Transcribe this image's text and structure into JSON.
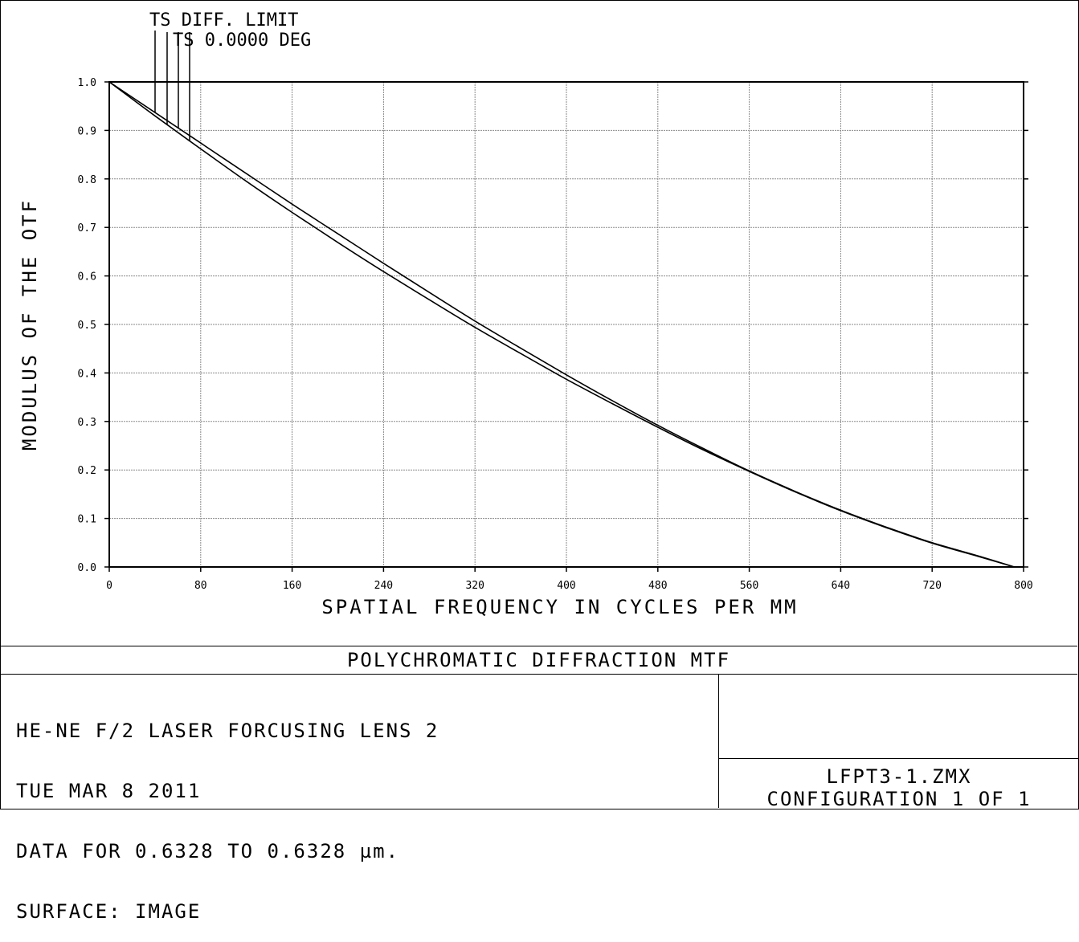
{
  "chart_data": {
    "type": "line",
    "title": "POLYCHROMATIC DIFFRACTION MTF",
    "xlabel": "SPATIAL FREQUENCY IN CYCLES PER MM",
    "ylabel": "MODULUS OF THE OTF",
    "xlim": [
      0,
      800
    ],
    "ylim": [
      0.0,
      1.0
    ],
    "x_ticks": [
      "0",
      "80",
      "160",
      "240",
      "320",
      "400",
      "480",
      "560",
      "640",
      "720",
      "800"
    ],
    "y_ticks": [
      "0.0",
      "0.1",
      "0.2",
      "0.3",
      "0.4",
      "0.5",
      "0.6",
      "0.7",
      "0.8",
      "0.9",
      "1.0"
    ],
    "grid": true,
    "legend_position": "top-left",
    "series": [
      {
        "name": "TS DIFF. LIMIT",
        "x": [
          0,
          40,
          80,
          120,
          160,
          200,
          240,
          280,
          320,
          360,
          400,
          440,
          480,
          520,
          560,
          600,
          640,
          680,
          720,
          760,
          792
        ],
        "y": [
          1.0,
          0.937,
          0.874,
          0.811,
          0.748,
          0.687,
          0.626,
          0.566,
          0.507,
          0.451,
          0.396,
          0.343,
          0.292,
          0.244,
          0.198,
          0.156,
          0.117,
          0.082,
          0.05,
          0.023,
          0.0
        ]
      },
      {
        "name": "TS 0.0000 DEG",
        "x": [
          0,
          40,
          80,
          120,
          160,
          200,
          240,
          280,
          320,
          360,
          400,
          440,
          480,
          520,
          560,
          600,
          640,
          680,
          720,
          760,
          792
        ],
        "y": [
          1.0,
          0.93,
          0.862,
          0.795,
          0.731,
          0.669,
          0.609,
          0.551,
          0.494,
          0.44,
          0.387,
          0.337,
          0.288,
          0.241,
          0.197,
          0.155,
          0.116,
          0.081,
          0.049,
          0.022,
          0.0
        ]
      }
    ]
  },
  "info": {
    "line1": "HE-NE F/2 LASER FORCUSING LENS 2",
    "line2": "TUE MAR 8 2011",
    "line3": "DATA FOR 0.6328 TO 0.6328 µm.",
    "line4": "SURFACE: IMAGE",
    "file_name": "LFPT3-1.ZMX",
    "configuration": "CONFIGURATION 1 OF 1"
  }
}
